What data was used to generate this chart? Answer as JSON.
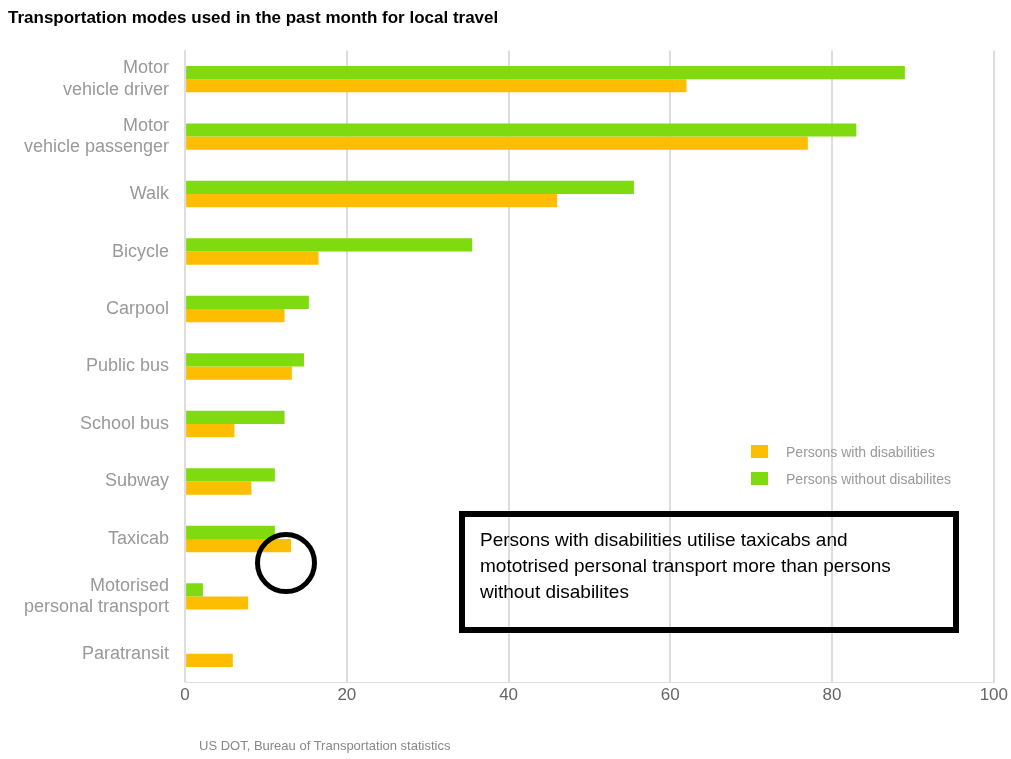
{
  "chart_data": {
    "type": "bar",
    "orientation": "horizontal",
    "title": "Transportation modes used in the past month for local travel",
    "categories": [
      "Motor vehicle driver",
      "Motor vehicle passenger",
      "Walk",
      "Bicycle",
      "Carpool",
      "Public bus",
      "School bus",
      "Subway",
      "Taxicab",
      "Motorised personal transport",
      "Paratransit"
    ],
    "series": [
      {
        "name": "Persons without disabilites",
        "color": "#7fdb0f",
        "values": [
          89,
          83,
          55.5,
          35.5,
          15.3,
          14.7,
          12.3,
          11.1,
          11.1,
          2.2,
          null
        ]
      },
      {
        "name": "Persons with disabilities",
        "color": "#fdbd00",
        "values": [
          62,
          77,
          46,
          16.5,
          12.3,
          13.2,
          6.1,
          8.2,
          13.1,
          7.8,
          5.9
        ]
      }
    ],
    "xlim": [
      0,
      100
    ],
    "xticks": [
      0,
      20,
      40,
      60,
      80,
      100
    ],
    "grid": "x",
    "legend": "right",
    "annotations": [
      "Persons with disabilities utilise taxicabs and mototrised personal transport more than persons without disabilites",
      "US DOT, Bureau of Transportation statistics"
    ]
  }
}
